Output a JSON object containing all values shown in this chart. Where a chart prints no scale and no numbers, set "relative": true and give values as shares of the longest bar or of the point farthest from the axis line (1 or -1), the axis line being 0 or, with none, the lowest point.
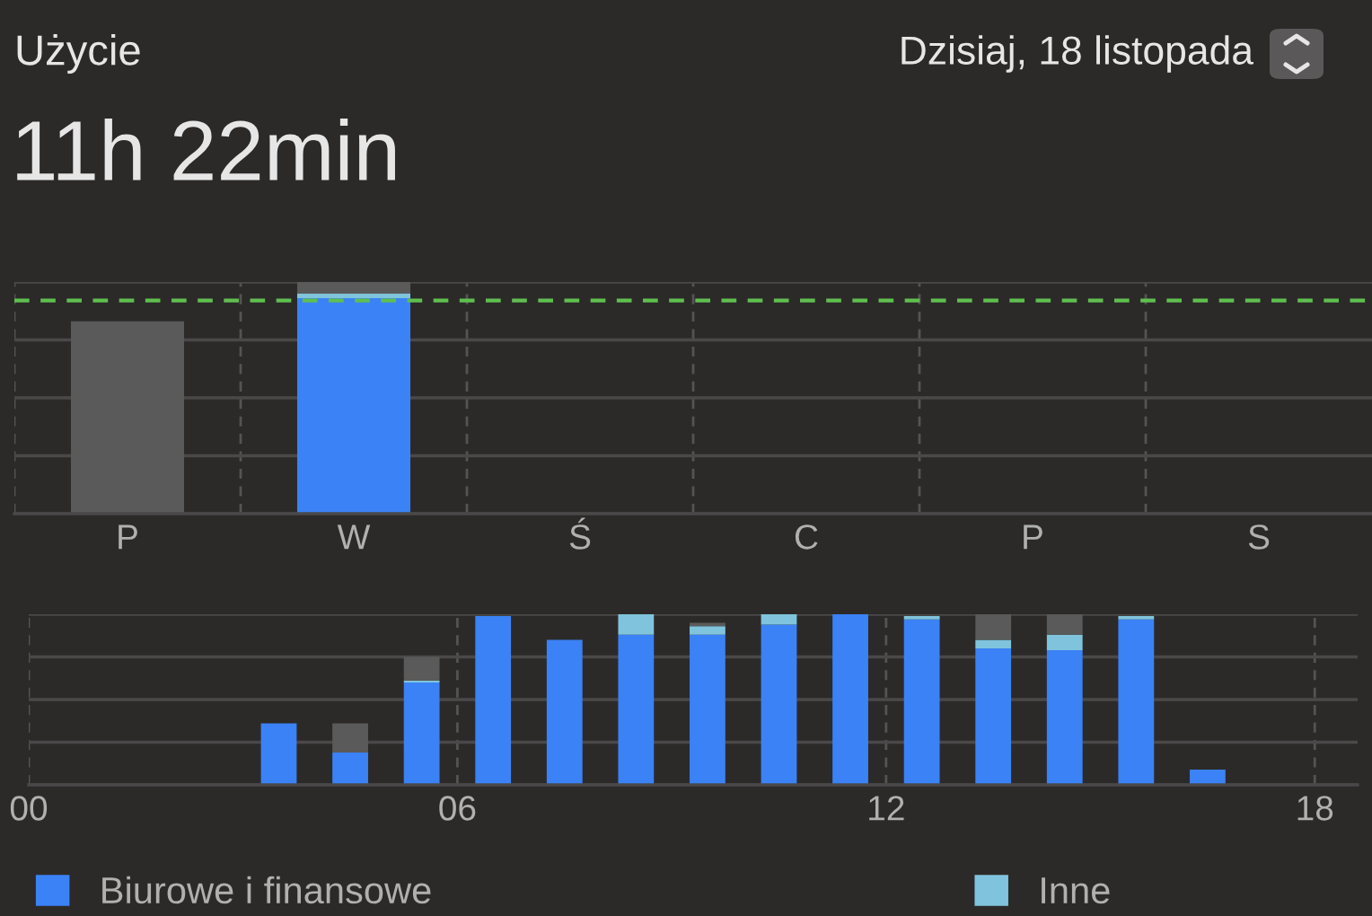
{
  "chart_data": [
    {
      "type": "bar",
      "title": "Użycie",
      "subtitle": "11h 22min",
      "annotations": [
        "Dzisiaj, 18 listopada"
      ],
      "relative": true,
      "stacked": true,
      "categories": [
        "P",
        "W",
        "Ś",
        "C",
        "P",
        "S"
      ],
      "series": [
        {
          "color": "#3b82f6",
          "values": [
            null,
            0.93,
            null,
            null,
            null,
            null
          ]
        },
        {
          "color": "#7fc4dc",
          "values": [
            null,
            0.02,
            null,
            null,
            null,
            null
          ]
        },
        {
          "color": "#5a5a5a",
          "values": [
            0.83,
            0.05,
            null,
            null,
            null,
            null
          ]
        }
      ],
      "ref_lines": [
        {
          "axis": "y",
          "value": 0.92,
          "color": "#5fbf4f",
          "line_style": "dashed"
        }
      ],
      "grid": true,
      "tick_labels": "x"
    },
    {
      "type": "bar",
      "relative": true,
      "stacked": true,
      "legend": "bottom",
      "x": [
        3.5,
        4.5,
        5.5,
        6.5,
        7.5,
        8.5,
        9.5,
        10.5,
        11.5,
        12.5,
        13.5,
        14.5,
        15.5,
        16.5
      ],
      "xlim": [
        0,
        18.6
      ],
      "xticks": [
        {
          "value": 0,
          "label": "00"
        },
        {
          "value": 6,
          "label": "06"
        },
        {
          "value": 12,
          "label": "12"
        },
        {
          "value": 18,
          "label": "18"
        }
      ],
      "series": [
        {
          "name": "Biurowe i finansowe",
          "color": "#3b82f6",
          "values": [
            0.36,
            0.19,
            0.6,
            0.99,
            0.85,
            0.88,
            0.88,
            0.94,
            1.0,
            0.97,
            0.8,
            0.79,
            0.97,
            0.09
          ]
        },
        {
          "name": "Inne",
          "color": "#7fc4dc",
          "values": [
            null,
            null,
            0.01,
            null,
            null,
            0.12,
            0.05,
            0.06,
            null,
            0.02,
            0.05,
            0.09,
            0.02,
            null
          ]
        },
        {
          "color": "#5a5a5a",
          "values": [
            null,
            0.17,
            0.14,
            null,
            null,
            null,
            0.02,
            null,
            null,
            null,
            0.15,
            0.12,
            null,
            null
          ]
        }
      ],
      "grid": true,
      "tick_labels": "x"
    }
  ]
}
